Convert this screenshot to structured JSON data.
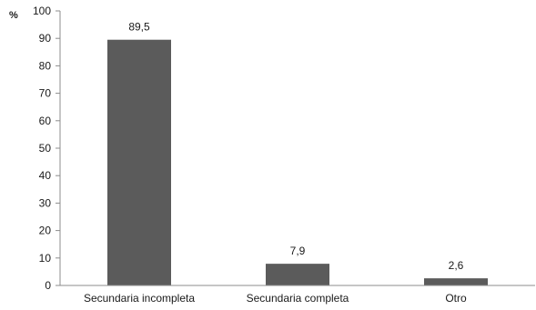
{
  "chart_data": {
    "type": "bar",
    "title": "",
    "xlabel": "",
    "ylabel": "%",
    "categories": [
      "Secundaria incompleta",
      "Secundaria completa",
      "Otro"
    ],
    "values": [
      89.5,
      7.9,
      2.6
    ],
    "data_labels": [
      "89,5",
      "7,9",
      "2,6"
    ],
    "ylim": [
      0,
      100
    ],
    "yticks": [
      0,
      10,
      20,
      30,
      40,
      50,
      60,
      70,
      80,
      90,
      100
    ],
    "grid": false,
    "legend": "none",
    "bar_color": "#5b5b5b"
  }
}
